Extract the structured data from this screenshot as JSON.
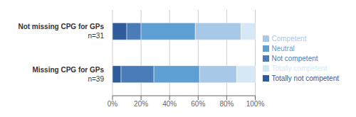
{
  "chart_data": {
    "type": "bar",
    "orientation": "horizontal",
    "stacked": true,
    "categories": [
      "Not missing CPG for GPs",
      "Missing CPG for GPs"
    ],
    "n_labels": [
      "n=31",
      "n=39"
    ],
    "series": [
      {
        "name": "Totally not competent",
        "color": "#2E5C9A",
        "values": [
          10,
          6
        ]
      },
      {
        "name": "Not competent",
        "color": "#4A7DB8",
        "values": [
          10,
          23
        ]
      },
      {
        "name": "Neutral",
        "color": "#5E9FD4",
        "values": [
          38,
          32
        ]
      },
      {
        "name": "Competent",
        "color": "#A8C8E8",
        "values": [
          32,
          26
        ]
      },
      {
        "name": "Totally competent",
        "color": "#D6E8F5",
        "values": [
          10,
          13
        ]
      }
    ],
    "xlim": [
      0,
      100
    ],
    "xticks": [
      {
        "value": 0,
        "label": "0%"
      },
      {
        "value": 20,
        "label": "20%"
      },
      {
        "value": 40,
        "label": "40%"
      },
      {
        "value": 60,
        "label": "60%"
      },
      {
        "value": 80,
        "label": "80%"
      },
      {
        "value": 100,
        "label": "100%"
      }
    ],
    "grid": true,
    "legend": "right"
  }
}
